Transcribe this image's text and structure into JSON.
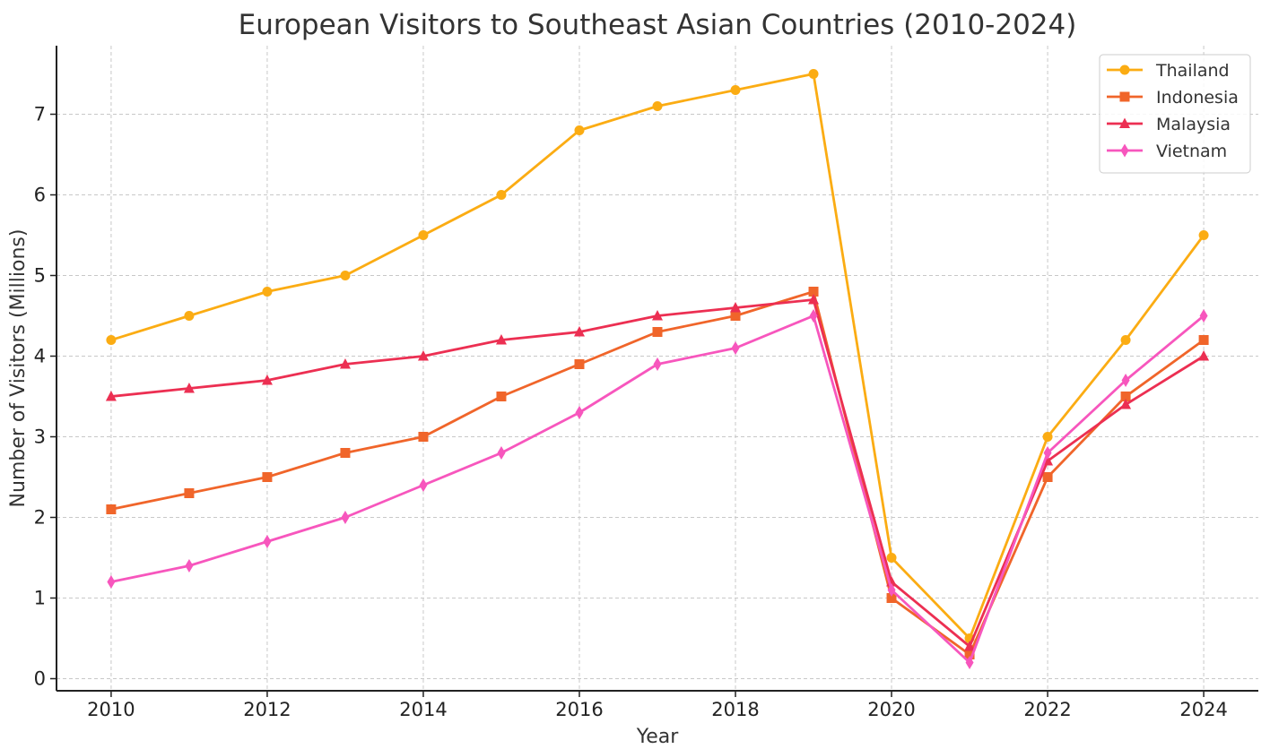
{
  "chart_data": {
    "type": "line",
    "title": "European Visitors to Southeast Asian Countries (2010-2024)",
    "xlabel": "Year",
    "ylabel": "Number of Visitors (Millions)",
    "x": [
      2010,
      2011,
      2012,
      2013,
      2014,
      2015,
      2016,
      2017,
      2018,
      2019,
      2020,
      2021,
      2022,
      2023,
      2024
    ],
    "x_ticks": [
      2010,
      2012,
      2014,
      2016,
      2018,
      2020,
      2022,
      2024
    ],
    "y_ticks": [
      0,
      1,
      2,
      3,
      4,
      5,
      6,
      7
    ],
    "xlim": [
      2009.3,
      2024.7
    ],
    "ylim": [
      -0.15,
      7.85
    ],
    "grid": true,
    "legend_position": "top-right",
    "series": [
      {
        "name": "Thailand",
        "color": "#fbac13",
        "marker": "circle",
        "values": [
          4.2,
          4.5,
          4.8,
          5.0,
          5.5,
          6.0,
          6.8,
          7.1,
          7.3,
          7.5,
          1.5,
          0.5,
          3.0,
          4.2,
          5.5
        ]
      },
      {
        "name": "Indonesia",
        "color": "#f0652a",
        "marker": "square",
        "values": [
          2.1,
          2.3,
          2.5,
          2.8,
          3.0,
          3.5,
          3.9,
          4.3,
          4.5,
          4.8,
          1.0,
          0.3,
          2.5,
          3.5,
          4.2
        ]
      },
      {
        "name": "Malaysia",
        "color": "#ec2f52",
        "marker": "triangle",
        "values": [
          3.5,
          3.6,
          3.7,
          3.9,
          4.0,
          4.2,
          4.3,
          4.5,
          4.6,
          4.7,
          1.2,
          0.4,
          2.7,
          3.4,
          4.0
        ]
      },
      {
        "name": "Vietnam",
        "color": "#f756bd",
        "marker": "diamond",
        "values": [
          1.2,
          1.4,
          1.7,
          2.0,
          2.4,
          2.8,
          3.3,
          3.9,
          4.1,
          4.5,
          1.1,
          0.2,
          2.8,
          3.7,
          4.5
        ]
      }
    ]
  }
}
